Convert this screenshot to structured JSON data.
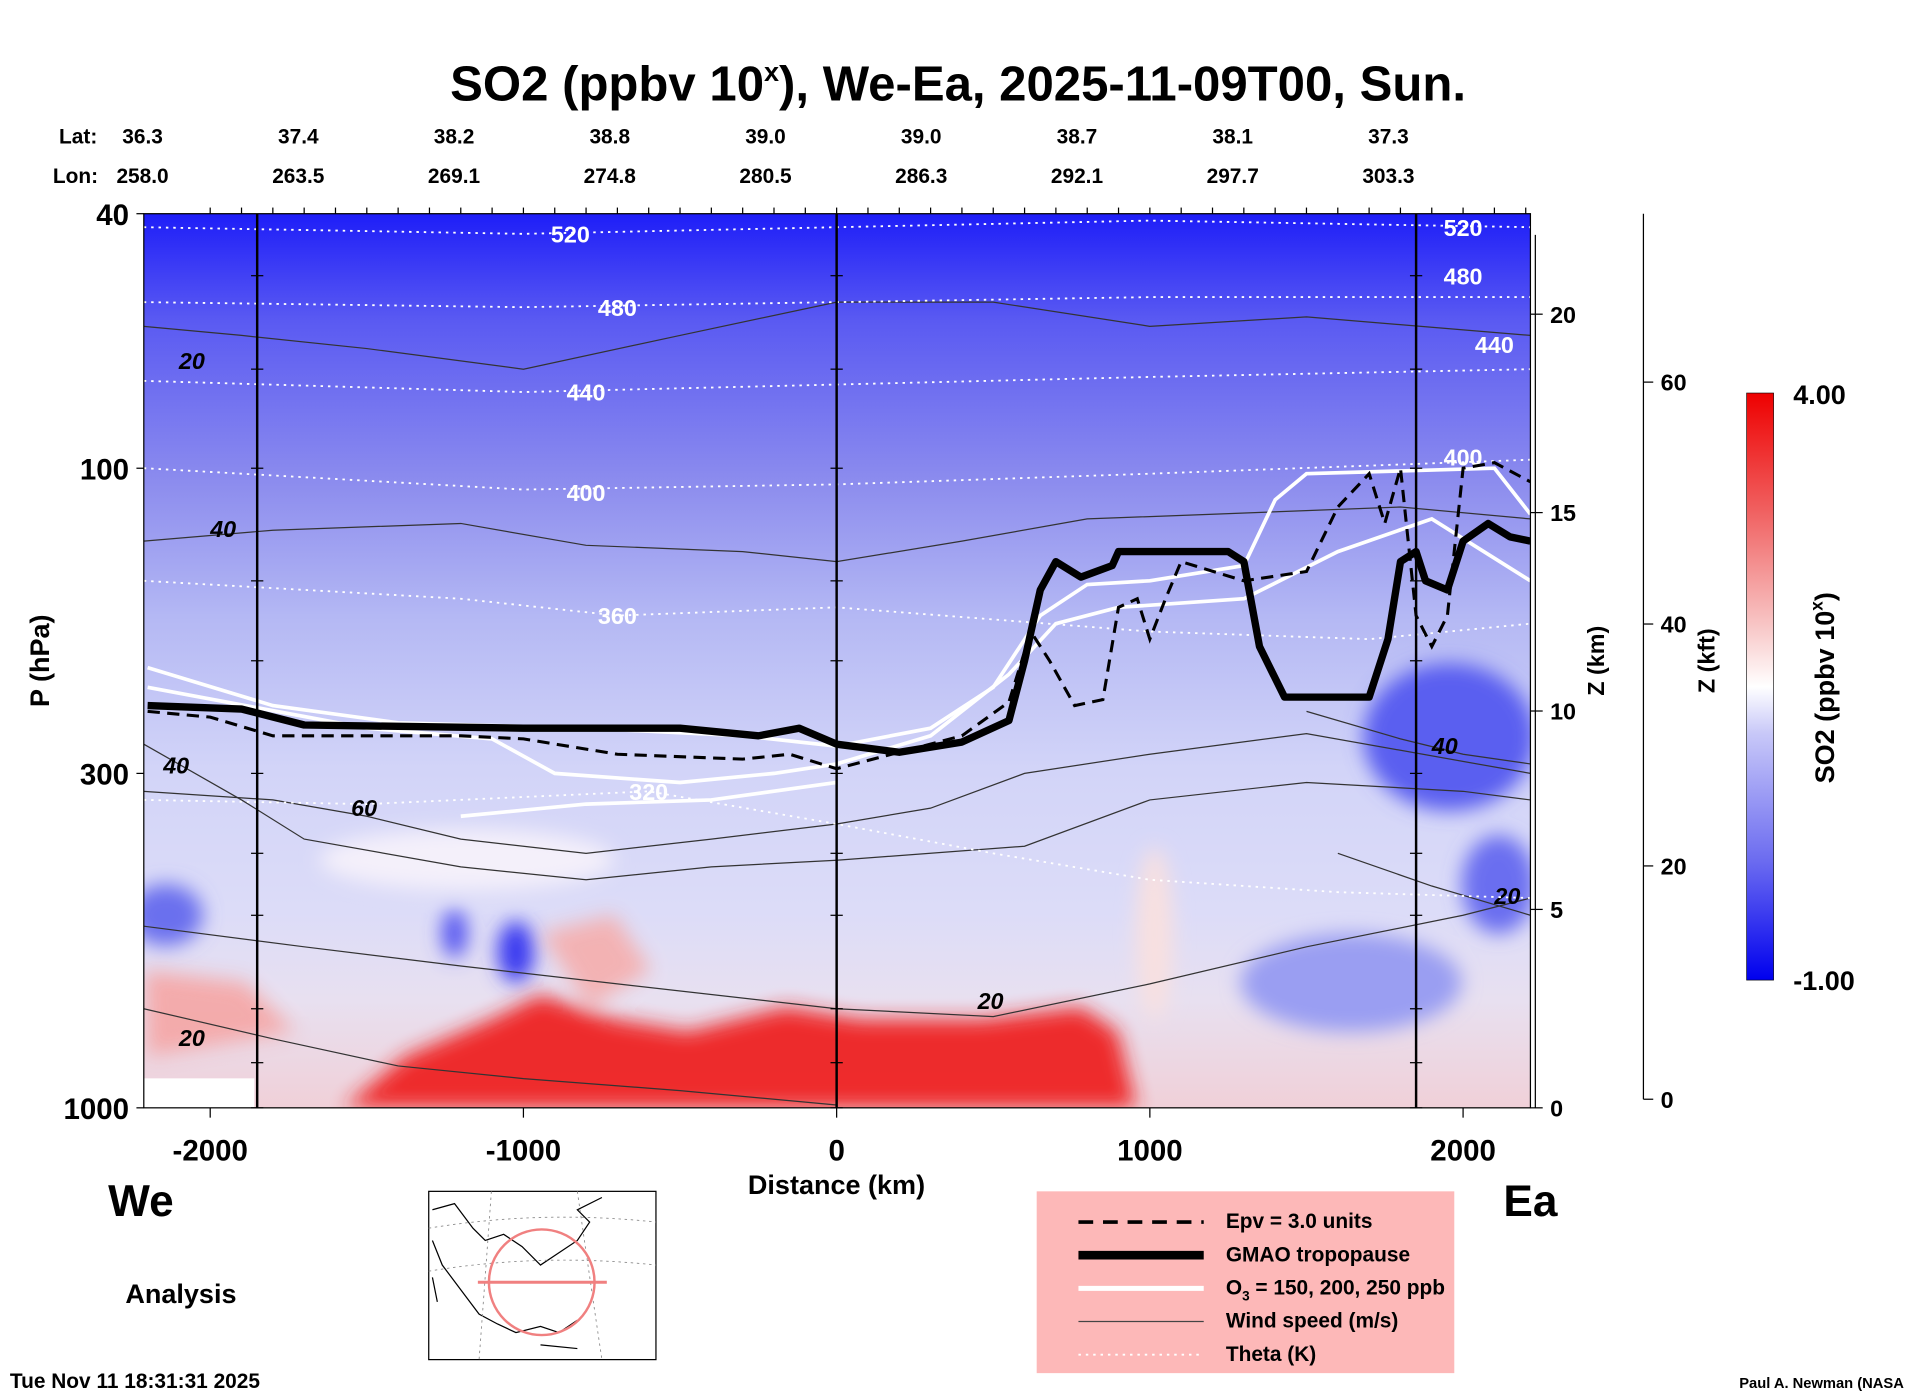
{
  "chart_data": {
    "type": "heatmap",
    "title_parts": [
      "SO2 (ppbv 10",
      "x",
      "), We-Ea, 2025-11-09T00, Sun."
    ],
    "header": {
      "lat_label": "Lat:",
      "lon_label": "Lon:",
      "lat": [
        "36.3",
        "37.4",
        "38.2",
        "38.8",
        "39.0",
        "39.0",
        "38.7",
        "38.1",
        "37.3"
      ],
      "lon": [
        "258.0",
        "263.5",
        "269.1",
        "274.8",
        "280.5",
        "286.3",
        "292.1",
        "297.7",
        "303.3"
      ]
    },
    "xlabel": "Distance (km)",
    "ylabel": "P (hPa)",
    "xlim": [
      -2212,
      2215
    ],
    "ylim": [
      1000,
      40
    ],
    "x_ticks": [
      -2000,
      -1000,
      0,
      1000,
      2000
    ],
    "x_tick_labels": [
      "-2000",
      "-1000",
      "0",
      "1000",
      "2000"
    ],
    "y_ticks": [
      40,
      100,
      300,
      1000
    ],
    "y_tick_labels": [
      "40",
      "100",
      "300",
      "1000"
    ],
    "z_km_label": "Z (km)",
    "z_km_ticks": [
      0,
      5,
      10,
      15,
      20
    ],
    "z_km_tick_labels": [
      "0",
      "5",
      "10",
      "15",
      "20"
    ],
    "z_kft_label": "Z (kft)",
    "z_kft_ticks": [
      0,
      20,
      40,
      60
    ],
    "z_kft_tick_labels": [
      "0",
      "20",
      "40",
      "60"
    ],
    "vertical_markers_km": [
      -1850,
      0,
      1850
    ],
    "colorbar": {
      "label_main": "SO2 (ppbv 10",
      "label_sup": "x",
      "label_end": ")",
      "min": -1.0,
      "max": 4.0,
      "min_label": "-1.00",
      "max_label": "4.00",
      "colors": [
        "#0000ee",
        "#6a6af0",
        "#c8c8f8",
        "#ffffff",
        "#f8c8c8",
        "#f06060",
        "#ee0000"
      ]
    },
    "tropopause": [
      [
        -2200,
        235
      ],
      [
        -1900,
        238
      ],
      [
        -1700,
        252
      ],
      [
        -1000,
        255
      ],
      [
        -500,
        255
      ],
      [
        -250,
        262
      ],
      [
        -120,
        255
      ],
      [
        0,
        270
      ],
      [
        200,
        278
      ],
      [
        400,
        268
      ],
      [
        550,
        248
      ],
      [
        600,
        200
      ],
      [
        650,
        155
      ],
      [
        700,
        140
      ],
      [
        780,
        148
      ],
      [
        880,
        142
      ],
      [
        900,
        135
      ],
      [
        1250,
        135
      ],
      [
        1300,
        140
      ],
      [
        1350,
        190
      ],
      [
        1430,
        228
      ],
      [
        1700,
        228
      ],
      [
        1760,
        185
      ],
      [
        1800,
        140
      ],
      [
        1850,
        135
      ],
      [
        1880,
        150
      ],
      [
        1950,
        155
      ],
      [
        2000,
        130
      ],
      [
        2080,
        122
      ],
      [
        2150,
        128
      ],
      [
        2215,
        130
      ]
    ],
    "o3_lines": [
      [
        [
          -2200,
          205
        ],
        [
          -1800,
          235
        ],
        [
          -1400,
          250
        ],
        [
          -800,
          255
        ],
        [
          -300,
          262
        ],
        [
          0,
          272
        ],
        [
          300,
          255
        ],
        [
          500,
          220
        ],
        [
          650,
          170
        ],
        [
          800,
          152
        ],
        [
          1000,
          150
        ],
        [
          1300,
          142
        ],
        [
          1400,
          112
        ],
        [
          1500,
          102
        ],
        [
          2100,
          100
        ],
        [
          2215,
          118
        ]
      ],
      [
        [
          -2200,
          220
        ],
        [
          -1500,
          255
        ],
        [
          -1100,
          265
        ],
        [
          -900,
          300
        ],
        [
          -500,
          310
        ],
        [
          -200,
          300
        ],
        [
          0,
          290
        ],
        [
          300,
          262
        ],
        [
          550,
          210
        ],
        [
          700,
          175
        ],
        [
          900,
          165
        ],
        [
          1300,
          160
        ],
        [
          1600,
          135
        ],
        [
          1900,
          120
        ],
        [
          2215,
          150
        ]
      ],
      [
        [
          -1200,
          350
        ],
        [
          -800,
          335
        ],
        [
          -400,
          330
        ],
        [
          0,
          310
        ]
      ]
    ],
    "epv_line": [
      [
        -2200,
        240
      ],
      [
        -2000,
        245
      ],
      [
        -1800,
        262
      ],
      [
        -1200,
        262
      ],
      [
        -1000,
        265
      ],
      [
        -700,
        280
      ],
      [
        -300,
        285
      ],
      [
        -150,
        280
      ],
      [
        0,
        295
      ],
      [
        200,
        278
      ],
      [
        400,
        262
      ],
      [
        550,
        232
      ],
      [
        620,
        180
      ],
      [
        680,
        200
      ],
      [
        760,
        235
      ],
      [
        850,
        230
      ],
      [
        900,
        165
      ],
      [
        960,
        160
      ],
      [
        1000,
        185
      ],
      [
        1050,
        160
      ],
      [
        1100,
        140
      ],
      [
        1300,
        150
      ],
      [
        1500,
        145
      ],
      [
        1600,
        115
      ],
      [
        1700,
        102
      ],
      [
        1750,
        122
      ],
      [
        1800,
        100
      ],
      [
        1850,
        170
      ],
      [
        1900,
        190
      ],
      [
        1950,
        170
      ],
      [
        2000,
        100
      ],
      [
        2100,
        98
      ],
      [
        2215,
        105
      ]
    ],
    "wind_contours": [
      {
        "label": "20",
        "label_at": [
          -2100,
          70
        ],
        "points": [
          [
            -2212,
            60
          ],
          [
            -1900,
            62
          ],
          [
            -1500,
            65
          ],
          [
            -1000,
            70
          ],
          [
            -500,
            62
          ],
          [
            0,
            55
          ],
          [
            500,
            55
          ],
          [
            1000,
            60
          ],
          [
            1500,
            58
          ],
          [
            2215,
            62
          ]
        ]
      },
      {
        "label": "40",
        "label_at": [
          -2000,
          128
        ],
        "points": [
          [
            -2212,
            130
          ],
          [
            -1800,
            125
          ],
          [
            -1200,
            122
          ],
          [
            -800,
            132
          ],
          [
            -300,
            135
          ],
          [
            0,
            140
          ],
          [
            400,
            130
          ],
          [
            800,
            120
          ],
          [
            1200,
            118
          ],
          [
            1800,
            115
          ],
          [
            2215,
            120
          ]
        ]
      },
      {
        "label": "60",
        "label_at": [
          -1550,
          350
        ],
        "points": [
          [
            -2212,
            320
          ],
          [
            -1800,
            330
          ],
          [
            -1500,
            350
          ],
          [
            -1200,
            380
          ],
          [
            -800,
            400
          ],
          [
            -400,
            380
          ],
          [
            0,
            360
          ],
          [
            300,
            340
          ],
          [
            600,
            300
          ],
          [
            1000,
            280
          ],
          [
            1500,
            260
          ],
          [
            2215,
            300
          ]
        ]
      },
      {
        "label": "40",
        "label_at": [
          -2150,
          300
        ],
        "points": [
          [
            -2212,
            270
          ],
          [
            -1900,
            330
          ],
          [
            -1700,
            380
          ],
          [
            -1200,
            420
          ],
          [
            -800,
            440
          ],
          [
            -400,
            420
          ],
          [
            0,
            410
          ],
          [
            600,
            390
          ],
          [
            1000,
            330
          ],
          [
            1500,
            310
          ],
          [
            2000,
            320
          ],
          [
            2215,
            330
          ]
        ]
      },
      {
        "label": "20",
        "label_at": [
          450,
          700
        ],
        "points": [
          [
            -2212,
            520
          ],
          [
            -1700,
            560
          ],
          [
            -1200,
            600
          ],
          [
            -700,
            640
          ],
          [
            0,
            700
          ],
          [
            500,
            720
          ],
          [
            1000,
            640
          ],
          [
            1500,
            560
          ],
          [
            2000,
            500
          ],
          [
            2215,
            470
          ]
        ]
      },
      {
        "label": "20",
        "label_at": [
          -2100,
          800
        ],
        "points": [
          [
            -2212,
            700
          ],
          [
            -1800,
            780
          ],
          [
            -1400,
            860
          ],
          [
            -1000,
            900
          ],
          [
            -500,
            940
          ],
          [
            0,
            990
          ]
        ]
      },
      {
        "label": "40",
        "label_at": [
          1900,
          280
        ],
        "points": [
          [
            1500,
            240
          ],
          [
            1800,
            265
          ],
          [
            2000,
            280
          ],
          [
            2215,
            290
          ]
        ]
      },
      {
        "label": "20",
        "label_at": [
          2100,
          480
        ],
        "points": [
          [
            1600,
            400
          ],
          [
            1900,
            450
          ],
          [
            2215,
            500
          ]
        ]
      }
    ],
    "theta_lines": [
      {
        "label": "520",
        "label_at": [
          -850,
          43
        ],
        "points": [
          [
            -2212,
            42
          ],
          [
            -1000,
            43
          ],
          [
            0,
            42
          ],
          [
            1000,
            41
          ],
          [
            2215,
            42
          ]
        ]
      },
      {
        "label": "480",
        "label_at": [
          -700,
          56
        ],
        "points": [
          [
            -2212,
            55
          ],
          [
            -1000,
            56
          ],
          [
            0,
            55
          ],
          [
            1000,
            54
          ],
          [
            2215,
            54
          ]
        ]
      },
      {
        "label": "440",
        "label_at": [
          -800,
          76
        ],
        "points": [
          [
            -2212,
            73
          ],
          [
            -1000,
            76
          ],
          [
            0,
            74
          ],
          [
            1000,
            72
          ],
          [
            2215,
            70
          ]
        ]
      },
      {
        "label": "400",
        "label_at": [
          -800,
          109
        ],
        "points": [
          [
            -2212,
            100
          ],
          [
            -1000,
            108
          ],
          [
            0,
            106
          ],
          [
            1000,
            102
          ],
          [
            2215,
            97
          ]
        ]
      },
      {
        "label": "360",
        "label_at": [
          -700,
          170
        ],
        "points": [
          [
            -2212,
            150
          ],
          [
            -1200,
            160
          ],
          [
            -700,
            170
          ],
          [
            0,
            165
          ],
          [
            1000,
            180
          ],
          [
            1700,
            185
          ],
          [
            2215,
            175
          ]
        ]
      },
      {
        "label": "320",
        "label_at": [
          -600,
          320
        ],
        "points": [
          [
            -2212,
            330
          ],
          [
            -1500,
            335
          ],
          [
            -600,
            320
          ],
          [
            0,
            360
          ],
          [
            500,
            400
          ],
          [
            1000,
            440
          ],
          [
            1600,
            460
          ],
          [
            2215,
            470
          ]
        ]
      },
      {
        "label": "480",
        "label_at": [
          2000,
          50
        ],
        "points": []
      },
      {
        "label": "440",
        "label_at": [
          2100,
          64
        ],
        "points": []
      },
      {
        "label": "400",
        "label_at": [
          2000,
          96
        ],
        "points": []
      },
      {
        "label": "520",
        "label_at": [
          2000,
          42
        ],
        "points": []
      }
    ],
    "legend": {
      "items": [
        "Epv = 3.0 units",
        "GMAO tropopause",
        "O",
        "Wind speed (m/s)",
        "Theta (K)"
      ],
      "o3_sub": "3",
      "o3_rest": " = 150, 200, 250 ppb"
    }
  },
  "labels": {
    "west": "We",
    "east": "Ea",
    "mode": "Analysis",
    "timestamp": "Tue Nov 11 18:31:31 2025",
    "credit": "Paul A. Newman (NASA"
  }
}
